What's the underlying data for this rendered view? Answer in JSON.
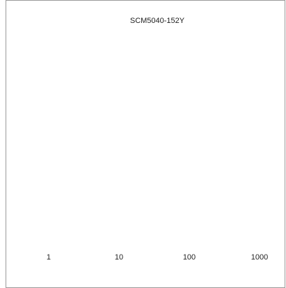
{
  "chart_data": {
    "type": "line",
    "title": "SCM5040-152Y",
    "xscale": "log",
    "xlim": [
      0.32,
      1850
    ],
    "xticks": [
      1,
      10,
      100,
      1000
    ]
  }
}
